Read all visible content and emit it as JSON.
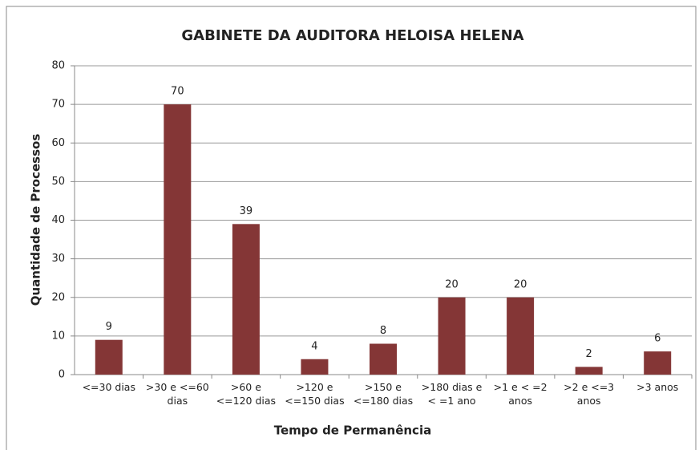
{
  "chart_data": {
    "type": "bar",
    "title": "GABINETE DA AUDITORA HELOISA HELENA",
    "xlabel": "Tempo de Permanência",
    "ylabel": "Quantidade de Processos",
    "categories": [
      "<=30 dias",
      ">30 e <=60 dias",
      ">60 e <=120 dias",
      ">120 e <=150 dias",
      ">150 e <=180 dias",
      ">180 dias e < =1 ano",
      ">1 e < =2 anos",
      ">2 e <=3 anos",
      ">3 anos"
    ],
    "values": [
      9,
      70,
      39,
      4,
      8,
      20,
      20,
      2,
      6
    ],
    "color": "#843636",
    "ylim": [
      0,
      80
    ],
    "yticks": [
      0,
      10,
      20,
      30,
      40,
      50,
      60,
      70,
      80
    ],
    "grid": true
  }
}
